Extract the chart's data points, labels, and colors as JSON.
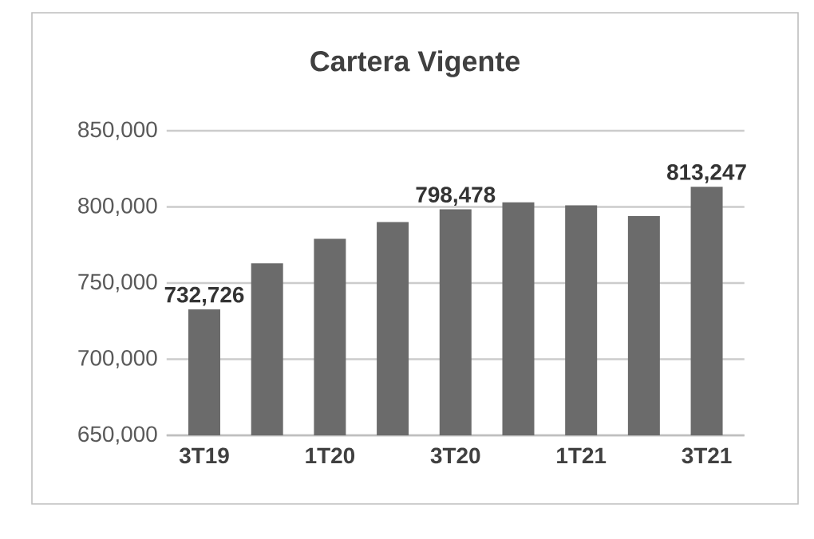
{
  "chart_data": {
    "type": "bar",
    "title": "Cartera Vigente",
    "categories": [
      "3T19",
      null,
      "1T20",
      null,
      "3T20",
      null,
      "1T21",
      null,
      "3T21"
    ],
    "values": [
      732726,
      763000,
      779000,
      790000,
      798478,
      803000,
      801000,
      794000,
      813247
    ],
    "value_labels": [
      "732,726",
      null,
      null,
      null,
      "798,478",
      null,
      null,
      null,
      "813,247"
    ],
    "color": "#6b6b6b",
    "ylim": [
      650000,
      850000
    ],
    "yticks": [
      {
        "value": 650000,
        "label": "650,000"
      },
      {
        "value": 700000,
        "label": "700,000"
      },
      {
        "value": 750000,
        "label": "750,000"
      },
      {
        "value": 800000,
        "label": "800,000"
      },
      {
        "value": 850000,
        "label": "850,000"
      }
    ],
    "grid": "y"
  }
}
